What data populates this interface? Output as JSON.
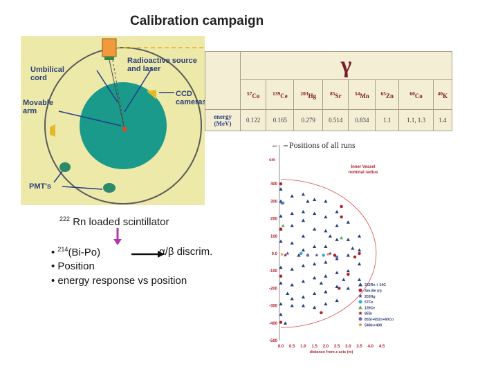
{
  "title": "Calibration campaign",
  "detector": {
    "labels": {
      "umbilical": [
        "Umbilical",
        "cord"
      ],
      "source": [
        "Radioactive source",
        "and laser"
      ],
      "arm": [
        "Movable",
        "arm"
      ],
      "ccd": [
        "CCD",
        "cameras"
      ],
      "pmt": "PMT's"
    }
  },
  "gamma_table": {
    "symbol": "γ",
    "row_label": [
      "energy",
      "(MeV)"
    ],
    "isotopes": [
      {
        "mass": "57",
        "el": "Co"
      },
      {
        "mass": "139",
        "el": "Ce"
      },
      {
        "mass": "203",
        "el": "Hg"
      },
      {
        "mass": "85",
        "el": "Sr"
      },
      {
        "mass": "54",
        "el": "Mn"
      },
      {
        "mass": "65",
        "el": "Zn"
      },
      {
        "mass": "60",
        "el": "Co"
      },
      {
        "mass": "40",
        "el": "K"
      }
    ],
    "energies": [
      "0.122",
      "0.165",
      "0.279",
      "0.514",
      "0.834",
      "1.1",
      "1.1, 1.3",
      "1.4"
    ]
  },
  "scintillator": {
    "sup": "222",
    "text": " Rn loaded scintillator"
  },
  "bullets": {
    "first_sup": "214",
    "first_text": "(Bi-Po)",
    "first_result": "α/β discrim.",
    "second": "Position",
    "third": "energy response vs position"
  },
  "chart_data": {
    "type": "scatter",
    "title": "Positions of all runs",
    "ylabel": "cm",
    "xlabel": "distance from z axis (m)",
    "xlim": [
      0,
      4.5
    ],
    "ylim": [
      -500,
      500
    ],
    "x_ticks": [
      "0.0",
      "0.5",
      "1.0",
      "1.5",
      "2.0",
      "2.5",
      "3.0",
      "3.5",
      "4.0",
      "4.5"
    ],
    "y_ticks": [
      "400",
      "300",
      "200",
      "100",
      "0.0",
      "-100",
      "-200",
      "-300",
      "-400",
      "-500"
    ],
    "y_top_tick": "500",
    "annotation": [
      "Inner Vessel",
      "nominal radius"
    ],
    "vessel_radius_m": 4.25,
    "legend": [
      {
        "label": "222Rn + 14C",
        "color": "#1f3f7a",
        "marker": "triangle"
      },
      {
        "label": "Am-Be (n)",
        "color": "#b01e2a",
        "marker": "circle"
      },
      {
        "label": "203Hg",
        "color": "#4a3a9a",
        "marker": "star"
      },
      {
        "label": "57Co",
        "color": "#35a8d8",
        "marker": "circle"
      },
      {
        "label": "139Ce",
        "color": "#6aa84f",
        "marker": "triangle"
      },
      {
        "label": "85Sr",
        "color": "#8a1a3a",
        "marker": "star"
      },
      {
        "label": "85Sr+65Zn+60Co",
        "color": "#6a6aa8",
        "marker": "circle"
      },
      {
        "label": "54Mn+40K",
        "color": "#e08a3a",
        "marker": "star"
      }
    ],
    "series": [
      {
        "name": "222Rn + 14C",
        "marker": "triangle",
        "color": "#1f3f7a",
        "points": [
          [
            0,
            370
          ],
          [
            0,
            300
          ],
          [
            0,
            215
          ],
          [
            0,
            140
          ],
          [
            0,
            70
          ],
          [
            0,
            -80
          ],
          [
            0,
            -170
          ],
          [
            0,
            -290
          ],
          [
            0,
            -350
          ],
          [
            0.5,
            330
          ],
          [
            0.5,
            230
          ],
          [
            0.5,
            160
          ],
          [
            0.5,
            60
          ],
          [
            0.5,
            -90
          ],
          [
            0.5,
            -180
          ],
          [
            0.5,
            -260
          ],
          [
            0.5,
            -300
          ],
          [
            1,
            340
          ],
          [
            1,
            240
          ],
          [
            1,
            190
          ],
          [
            1,
            100
          ],
          [
            1,
            20
          ],
          [
            1,
            -70
          ],
          [
            1,
            -160
          ],
          [
            1,
            -250
          ],
          [
            1,
            -300
          ],
          [
            1.5,
            310
          ],
          [
            1.5,
            230
          ],
          [
            1.5,
            140
          ],
          [
            1.5,
            40
          ],
          [
            1.5,
            -60
          ],
          [
            1.5,
            -140
          ],
          [
            1.5,
            -230
          ],
          [
            1.5,
            -310
          ],
          [
            2,
            300
          ],
          [
            2,
            210
          ],
          [
            2,
            130
          ],
          [
            2,
            40
          ],
          [
            2,
            -50
          ],
          [
            2,
            -130
          ],
          [
            2,
            -220
          ],
          [
            2,
            -290
          ],
          [
            2.5,
            240
          ],
          [
            2.5,
            160
          ],
          [
            2.5,
            80
          ],
          [
            2.5,
            -30
          ],
          [
            2.5,
            -110
          ],
          [
            2.5,
            -190
          ],
          [
            2.5,
            -270
          ],
          [
            3,
            180
          ],
          [
            3,
            80
          ],
          [
            3,
            -10
          ],
          [
            3,
            -100
          ],
          [
            3,
            -200
          ],
          [
            3.5,
            100
          ],
          [
            3.5,
            20
          ],
          [
            3.5,
            -60
          ],
          [
            3.5,
            -150
          ],
          [
            0.3,
            -230
          ],
          [
            0.8,
            -10
          ],
          [
            1.2,
            300
          ],
          [
            1.8,
            -170
          ],
          [
            2.2,
            100
          ],
          [
            2.8,
            -150
          ],
          [
            3.2,
            30
          ],
          [
            0.2,
            -400
          ]
        ]
      },
      {
        "name": "Am-Be (n)",
        "marker": "circle",
        "color": "#b01e2a",
        "points": [
          [
            0,
            400
          ],
          [
            0,
            140
          ],
          [
            0,
            -130
          ],
          [
            0,
            -395
          ],
          [
            2.7,
            270
          ],
          [
            2.7,
            210
          ],
          [
            2.4,
            -10
          ],
          [
            3.3,
            -20
          ],
          [
            3.5,
            0
          ],
          [
            3,
            -120
          ],
          [
            2.6,
            -200
          ],
          [
            1.8,
            -340
          ]
        ]
      },
      {
        "name": "203Hg",
        "marker": "star",
        "color": "#4a3a9a",
        "points": [
          [
            0.3,
            0
          ],
          [
            1.6,
            -10
          ],
          [
            2.2,
            0
          ]
        ]
      },
      {
        "name": "57Co",
        "marker": "circle",
        "color": "#35a8d8",
        "points": [
          [
            0.1,
            290
          ],
          [
            0.9,
            0
          ],
          [
            1.9,
            -10
          ]
        ]
      },
      {
        "name": "139Ce",
        "marker": "triangle",
        "color": "#6aa84f",
        "points": [
          [
            2.7,
            90
          ],
          [
            0.1,
            160
          ]
        ]
      },
      {
        "name": "85Sr",
        "marker": "star",
        "color": "#8a1a3a",
        "points": [
          [
            0.2,
            -10
          ]
        ]
      },
      {
        "name": "85Sr+65Zn+60Co",
        "marker": "circle",
        "color": "#6a6aa8",
        "points": [
          [
            0.05,
            290
          ],
          [
            1.2,
            -10
          ],
          [
            2.5,
            -20
          ]
        ]
      },
      {
        "name": "54Mn+40K",
        "marker": "star",
        "color": "#e08a3a",
        "points": [
          [
            0.05,
            -5
          ],
          [
            2.1,
            -5
          ]
        ]
      }
    ]
  }
}
